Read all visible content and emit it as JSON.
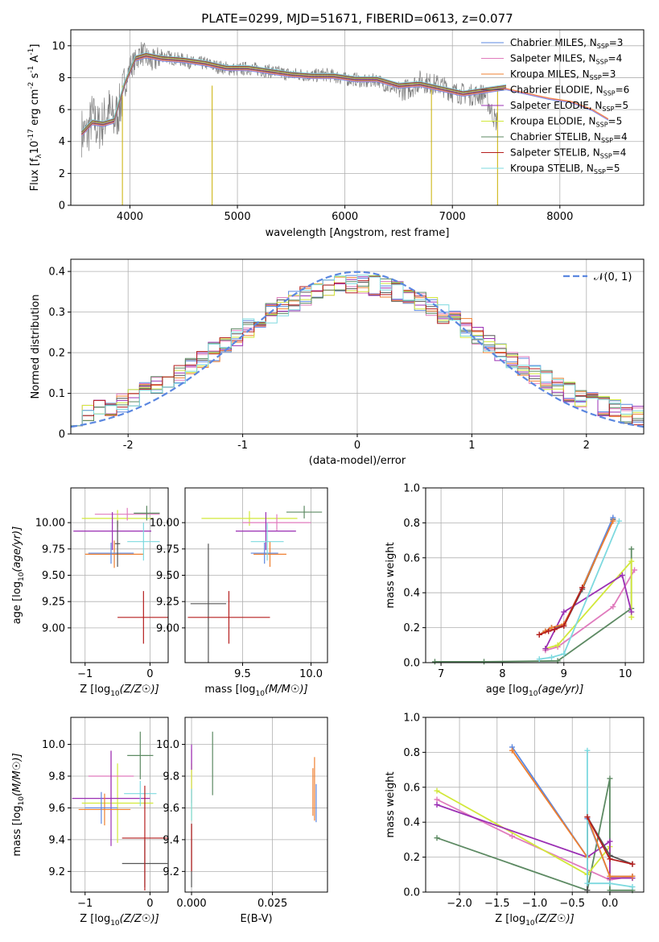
{
  "title": "PLATE=0299, MJD=51671, FIBERID=0613, z=0.077",
  "legend_models": [
    {
      "name": "Chabrier MILES, N",
      "sub": "SSP",
      "suffix": "=3",
      "color": "#5b87e0"
    },
    {
      "name": "Salpeter MILES, N",
      "sub": "SSP",
      "suffix": "=4",
      "color": "#e07bbd"
    },
    {
      "name": "Kroupa MILES, N",
      "sub": "SSP",
      "suffix": "=3",
      "color": "#ef7f2f"
    },
    {
      "name": "Chabrier ELODIE, N",
      "sub": "SSP",
      "suffix": "=6",
      "color": "#555555"
    },
    {
      "name": "Salpeter ELODIE, N",
      "sub": "SSP",
      "suffix": "=5",
      "color": "#9b30b4"
    },
    {
      "name": "Kroupa ELODIE, N",
      "sub": "SSP",
      "suffix": "=5",
      "color": "#d2e83a"
    },
    {
      "name": "Chabrier STELIB, N",
      "sub": "SSP",
      "suffix": "=4",
      "color": "#5d8a63"
    },
    {
      "name": "Salpeter STELIB, N",
      "sub": "SSP",
      "suffix": "=4",
      "color": "#b51f1f"
    },
    {
      "name": "Kroupa STELIB, N",
      "sub": "SSP",
      "suffix": "=5",
      "color": "#7dd9df"
    }
  ],
  "normal_label": "𝒩(0, 1)",
  "chart_data": [
    {
      "id": "spectrum",
      "type": "line",
      "xlabel": "wavelength [Angstrom, rest frame]",
      "ylabel_parts": [
        "Flux [f",
        "λ",
        "10",
        "-17",
        " erg cm",
        "-2",
        " s",
        "-1",
        " A",
        "-1",
        "]"
      ],
      "xlim": [
        3450,
        8780
      ],
      "ylim": [
        0,
        11
      ],
      "xticks": [
        4000,
        5000,
        6000,
        7000,
        8000
      ],
      "yticks": [
        0,
        2,
        4,
        6,
        8,
        10
      ],
      "data_color": "#808080",
      "data_x": [
        3550,
        3600,
        3650,
        3700,
        3750,
        3800,
        3850,
        3900,
        3950,
        4000,
        4050,
        4100,
        4150,
        4200,
        4300,
        4400,
        4500,
        4600,
        4700,
        4800,
        4900,
        5000,
        5100,
        5200,
        5300,
        5400,
        5500,
        5600,
        5700,
        5800,
        5900,
        6000,
        6100,
        6200,
        6300,
        6400,
        6500,
        6600,
        6700,
        6800,
        6900,
        7000,
        7100,
        7200,
        7300,
        7400
      ],
      "data_y": [
        4.6,
        4.4,
        5.6,
        4.8,
        5.2,
        6.0,
        5.3,
        6.0,
        7.4,
        8.7,
        9.0,
        9.6,
        9.3,
        8.9,
        9.4,
        9.2,
        9.1,
        8.9,
        8.9,
        8.7,
        8.6,
        8.5,
        8.6,
        8.5,
        8.4,
        8.3,
        8.2,
        8.2,
        8.1,
        8.2,
        8.1,
        7.9,
        7.9,
        7.7,
        7.9,
        7.4,
        7.2,
        7.3,
        7.8,
        7.6,
        7.5,
        7.1,
        7.0,
        6.9,
        7.0,
        5.3
      ],
      "model_x": [
        3550,
        3650,
        3750,
        3850,
        3950,
        4050,
        4150,
        4300,
        4500,
        4700,
        4900,
        5100,
        5300,
        5500,
        5700,
        5900,
        6100,
        6300,
        6500,
        6700,
        6900,
        7100,
        7300,
        7500,
        7700,
        7900,
        8100,
        8300,
        8450
      ],
      "model_y": [
        4.5,
        5.2,
        5.1,
        5.3,
        7.6,
        9.2,
        9.4,
        9.2,
        9.1,
        8.9,
        8.6,
        8.6,
        8.4,
        8.2,
        8.1,
        8.1,
        7.9,
        7.9,
        7.5,
        7.6,
        7.3,
        7.0,
        7.2,
        7.4,
        7.1,
        6.8,
        6.6,
        6.1,
        5.5
      ]
    },
    {
      "id": "residuals",
      "type": "histogram",
      "xlabel": "(data-model)/error",
      "ylabel": "Normed distribution",
      "xlim": [
        -2.5,
        2.5
      ],
      "ylim": [
        0,
        0.43
      ],
      "xticks": [
        -2,
        -1,
        0,
        1,
        2
      ],
      "yticks": [
        0.0,
        0.1,
        0.2,
        0.3,
        0.4
      ],
      "bin_edges_start": -2.5,
      "bin_width": 0.1,
      "normal": {
        "mu": 0,
        "sigma": 1,
        "color": "#5b87e0"
      }
    },
    {
      "id": "age-Z",
      "type": "errorbar",
      "xlabel": "Z [log10(Z/Z☉)]",
      "ylabel": "age  [log10(age/yr)]",
      "xlim": [
        -1.22,
        0.28
      ],
      "ylim": [
        8.67,
        10.33
      ],
      "xticks": [
        -1,
        0
      ],
      "xticklabels": [
        "−1",
        "0"
      ],
      "yticks": [
        9.0,
        9.25,
        9.5,
        9.75,
        10.0
      ],
      "yticklabels": [
        "9.00",
        "9.25",
        "9.50",
        "9.75",
        "10.00"
      ],
      "points": [
        {
          "x": -0.5,
          "xerr": 0.55,
          "y": 10.04,
          "yerr": 0.08,
          "color": "#d2e83a"
        },
        {
          "x": -0.35,
          "xerr": 0.5,
          "y": 10.08,
          "yerr": 0.06,
          "color": "#e07bbd"
        },
        {
          "x": -0.58,
          "xerr": 0.6,
          "y": 9.92,
          "yerr": 0.18,
          "color": "#9b30b4"
        },
        {
          "x": -0.05,
          "xerr": 0.2,
          "y": 10.09,
          "yerr": 0.07,
          "color": "#5d8a63"
        },
        {
          "x": -0.55,
          "xerr": 0.45,
          "y": 9.7,
          "yerr": 0.13,
          "color": "#ef7f2f"
        },
        {
          "x": -0.6,
          "xerr": 0.35,
          "y": 9.71,
          "yerr": 0.1,
          "color": "#5b87e0"
        },
        {
          "x": -0.1,
          "xerr": 0.25,
          "y": 9.82,
          "yerr": 0.18,
          "color": "#7dd9df"
        },
        {
          "x": -0.5,
          "xerr": 0.04,
          "y": 9.8,
          "yerr": 0.22,
          "color": "#555555"
        },
        {
          "x": -0.1,
          "xerr": 0.4,
          "y": 9.1,
          "yerr": 0.25,
          "color": "#b51f1f"
        }
      ]
    },
    {
      "id": "age-mass",
      "type": "errorbar",
      "xlabel": "mass [log10(M/M☉)]",
      "xlim": [
        9.08,
        10.12
      ],
      "ylim": [
        8.67,
        10.33
      ],
      "xticks": [
        9.5,
        10.0
      ],
      "xticklabels": [
        "9.5",
        "10.0"
      ],
      "yticks": [
        9.0,
        9.25,
        9.5,
        9.75,
        10.0
      ],
      "yticklabels": [
        "9.00",
        "9.25",
        "9.50",
        "9.75",
        "10.00"
      ],
      "points": [
        {
          "x": 9.55,
          "xerr": 0.35,
          "y": 10.04,
          "yerr": 0.07,
          "color": "#d2e83a"
        },
        {
          "x": 9.75,
          "xerr": 0.25,
          "y": 10.0,
          "yerr": 0.08,
          "color": "#e07bbd"
        },
        {
          "x": 9.67,
          "xerr": 0.22,
          "y": 9.92,
          "yerr": 0.18,
          "color": "#9b30b4"
        },
        {
          "x": 9.95,
          "xerr": 0.13,
          "y": 10.1,
          "yerr": 0.06,
          "color": "#5d8a63"
        },
        {
          "x": 9.7,
          "xerr": 0.12,
          "y": 9.7,
          "yerr": 0.12,
          "color": "#ef7f2f"
        },
        {
          "x": 9.66,
          "xerr": 0.1,
          "y": 9.71,
          "yerr": 0.1,
          "color": "#5b87e0"
        },
        {
          "x": 9.68,
          "xerr": 0.12,
          "y": 9.82,
          "yerr": 0.18,
          "color": "#7dd9df"
        },
        {
          "x": 9.25,
          "xerr": 0.13,
          "y": 9.23,
          "yerr": 0.57,
          "color": "#555555"
        },
        {
          "x": 9.4,
          "xerr": 0.3,
          "y": 9.1,
          "yerr": 0.25,
          "color": "#b51f1f"
        }
      ]
    },
    {
      "id": "mw-age",
      "type": "line",
      "xlabel": "age  [log10(age/yr)]",
      "ylabel": "mass weight",
      "xlim": [
        6.75,
        10.3
      ],
      "ylim": [
        0,
        1
      ],
      "xticks": [
        7,
        8,
        9,
        10
      ],
      "yticks": [
        0.0,
        0.2,
        0.4,
        0.6,
        0.8,
        1.0
      ],
      "yticklabels": [
        "0.0",
        "0.2",
        "0.4",
        "0.6",
        "0.8",
        "1.0"
      ],
      "series": [
        {
          "color": "#5d8a63",
          "x": [
            6.9,
            7.7,
            8.9,
            10.1,
            10.1
          ],
          "y": [
            0.005,
            0.005,
            0.01,
            0.31,
            0.65
          ]
        },
        {
          "color": "#e07bbd",
          "x": [
            8.7,
            8.9,
            9.8,
            10.15
          ],
          "y": [
            0.07,
            0.09,
            0.32,
            0.53
          ]
        },
        {
          "color": "#d2e83a",
          "x": [
            8.7,
            8.9,
            10.1,
            10.1
          ],
          "y": [
            0.08,
            0.1,
            0.58,
            0.26
          ]
        },
        {
          "color": "#9b30b4",
          "x": [
            8.7,
            9.0,
            9.95,
            10.1
          ],
          "y": [
            0.08,
            0.29,
            0.5,
            0.29
          ]
        },
        {
          "color": "#555555",
          "x": [
            8.6,
            8.7,
            8.8,
            9.0,
            9.3,
            9.8
          ],
          "y": [
            0.16,
            0.18,
            0.2,
            0.21,
            0.42,
            0.82
          ]
        },
        {
          "color": "#5b87e0",
          "x": [
            8.6,
            8.7,
            8.8,
            9.0,
            9.3,
            9.8
          ],
          "y": [
            0.16,
            0.18,
            0.2,
            0.22,
            0.43,
            0.83
          ]
        },
        {
          "color": "#ef7f2f",
          "x": [
            8.6,
            8.7,
            8.8,
            9.0,
            9.3,
            9.8
          ],
          "y": [
            0.16,
            0.18,
            0.2,
            0.22,
            0.43,
            0.81
          ]
        },
        {
          "color": "#7dd9df",
          "x": [
            8.6,
            8.8,
            9.0,
            9.9
          ],
          "y": [
            0.02,
            0.03,
            0.05,
            0.81
          ]
        },
        {
          "color": "#b51f1f",
          "x": [
            8.6,
            8.75,
            8.85,
            9.0,
            9.3
          ],
          "y": [
            0.16,
            0.18,
            0.19,
            0.21,
            0.43
          ]
        }
      ]
    },
    {
      "id": "mass-Z",
      "type": "errorbar",
      "xlabel": "Z [log10(Z/Z☉)]",
      "ylabel": "mass [log10(M/M☉)]",
      "xlim": [
        -1.22,
        0.28
      ],
      "ylim": [
        9.07,
        10.17
      ],
      "xticks": [
        -1,
        0
      ],
      "xticklabels": [
        "−1",
        "0"
      ],
      "yticks": [
        9.2,
        9.4,
        9.6,
        9.8,
        10.0
      ],
      "yticklabels": [
        "9.2",
        "9.4",
        "9.6",
        "9.8",
        "10.0"
      ],
      "points": [
        {
          "x": -0.5,
          "xerr": 0.55,
          "y": 9.63,
          "yerr": 0.25,
          "color": "#d2e83a"
        },
        {
          "x": -0.6,
          "xerr": 0.35,
          "y": 9.8,
          "yerr": 0.16,
          "color": "#e07bbd"
        },
        {
          "x": -0.6,
          "xerr": 0.6,
          "y": 9.66,
          "yerr": 0.3,
          "color": "#9b30b4"
        },
        {
          "x": -0.15,
          "xerr": 0.2,
          "y": 9.93,
          "yerr": 0.15,
          "color": "#5d8a63"
        },
        {
          "x": -0.7,
          "xerr": 0.4,
          "y": 9.59,
          "yerr": 0.1,
          "color": "#ef7f2f"
        },
        {
          "x": -0.75,
          "xerr": 0.25,
          "y": 9.6,
          "yerr": 0.1,
          "color": "#5b87e0"
        },
        {
          "x": -0.15,
          "xerr": 0.25,
          "y": 9.69,
          "yerr": 0.08,
          "color": "#7dd9df"
        },
        {
          "x": -0.08,
          "xerr": 0.35,
          "y": 9.25,
          "yerr": 0.15,
          "color": "#555555"
        },
        {
          "x": -0.08,
          "xerr": 0.35,
          "y": 9.41,
          "yerr": 0.33,
          "color": "#b51f1f"
        }
      ]
    },
    {
      "id": "mass-EBV",
      "type": "errorbar",
      "xlabel": "E(B-V)",
      "xlim": [
        -0.002,
        0.042
      ],
      "ylim": [
        9.07,
        10.17
      ],
      "xticks": [
        0.0,
        0.025
      ],
      "xticklabels": [
        "0.000",
        "0.025"
      ],
      "yticks": [
        9.2,
        9.4,
        9.6,
        9.8,
        10.0
      ],
      "yticklabels": [
        "9.2",
        "9.4",
        "9.6",
        "9.8",
        "10.0"
      ],
      "points": [
        {
          "x": 0.0,
          "xerr": 0,
          "y": 9.8,
          "yerr": 0.17,
          "color": "#e07bbd"
        },
        {
          "x": 0.0,
          "xerr": 0,
          "y": 9.7,
          "yerr": 0.18,
          "color": "#d2e83a"
        },
        {
          "x": 0.0,
          "xerr": 0,
          "y": 9.92,
          "yerr": 0.08,
          "color": "#9b30b4"
        },
        {
          "x": 0.0,
          "xerr": 0,
          "y": 9.62,
          "yerr": 0.1,
          "color": "#7dd9df"
        },
        {
          "x": 0.0,
          "xerr": 0,
          "y": 9.3,
          "yerr": 0.2,
          "color": "#555555"
        },
        {
          "x": 0.0,
          "xerr": 0,
          "y": 9.35,
          "yerr": 0.15,
          "color": "#b51f1f"
        },
        {
          "x": 0.0065,
          "xerr": 0,
          "y": 9.88,
          "yerr": 0.2,
          "color": "#5d8a63"
        },
        {
          "x": 0.0375,
          "xerr": 0,
          "y": 9.7,
          "yerr": 0.15,
          "color": "#ef7f2f"
        },
        {
          "x": 0.038,
          "xerr": 0,
          "y": 9.72,
          "yerr": 0.2,
          "color": "#ef7f2f"
        },
        {
          "x": 0.0385,
          "xerr": 0,
          "y": 9.63,
          "yerr": 0.12,
          "color": "#5b87e0"
        }
      ]
    },
    {
      "id": "mw-Z",
      "type": "line",
      "xlabel": "Z [log10(Z/Z☉)]",
      "ylabel": "mass weight",
      "xlim": [
        -2.45,
        0.45
      ],
      "ylim": [
        0,
        1
      ],
      "xticks": [
        -2.0,
        -1.5,
        -1.0,
        -0.5,
        0.0
      ],
      "xticklabels": [
        "−2.0",
        "−1.5",
        "−1.0",
        "−0.5",
        "0.0"
      ],
      "yticks": [
        0.0,
        0.2,
        0.4,
        0.6,
        0.8,
        1.0
      ],
      "yticklabels": [
        "0.0",
        "0.2",
        "0.4",
        "0.6",
        "0.8",
        "1.0"
      ],
      "series": [
        {
          "color": "#5d8a63",
          "x": [
            -2.3,
            -0.3,
            0.0,
            0.0,
            0.3
          ],
          "y": [
            0.31,
            0.01,
            0.65,
            0.01,
            0.01
          ]
        },
        {
          "color": "#e07bbd",
          "x": [
            -2.3,
            -1.3,
            0.0,
            0.3
          ],
          "y": [
            0.53,
            0.32,
            0.07,
            0.09
          ]
        },
        {
          "color": "#d2e83a",
          "x": [
            -2.3,
            -0.3,
            0.0,
            0.0,
            0.3
          ],
          "y": [
            0.58,
            0.1,
            0.26,
            0.08,
            0.08
          ]
        },
        {
          "color": "#9b30b4",
          "x": [
            -2.3,
            -0.3,
            0.0,
            0.0,
            0.3
          ],
          "y": [
            0.5,
            0.2,
            0.29,
            0.08,
            0.08
          ]
        },
        {
          "color": "#5b87e0",
          "x": [
            -1.3,
            -0.3,
            -0.3,
            0.0,
            0.3
          ],
          "y": [
            0.83,
            0.2,
            0.42,
            0.09,
            0.09
          ]
        },
        {
          "color": "#ef7f2f",
          "x": [
            -1.3,
            -0.3,
            -0.3,
            0.0,
            0.3
          ],
          "y": [
            0.81,
            0.2,
            0.43,
            0.09,
            0.09
          ]
        },
        {
          "color": "#555555",
          "x": [
            -0.3,
            -0.3,
            0.0,
            0.3
          ],
          "y": [
            0.01,
            0.43,
            0.21,
            0.16
          ]
        },
        {
          "color": "#7dd9df",
          "x": [
            -0.3,
            -0.3,
            0.0,
            0.3
          ],
          "y": [
            0.81,
            0.05,
            0.05,
            0.03
          ]
        },
        {
          "color": "#b51f1f",
          "x": [
            -0.3,
            0.0,
            0.3
          ],
          "y": [
            0.43,
            0.19,
            0.16
          ]
        }
      ]
    }
  ]
}
